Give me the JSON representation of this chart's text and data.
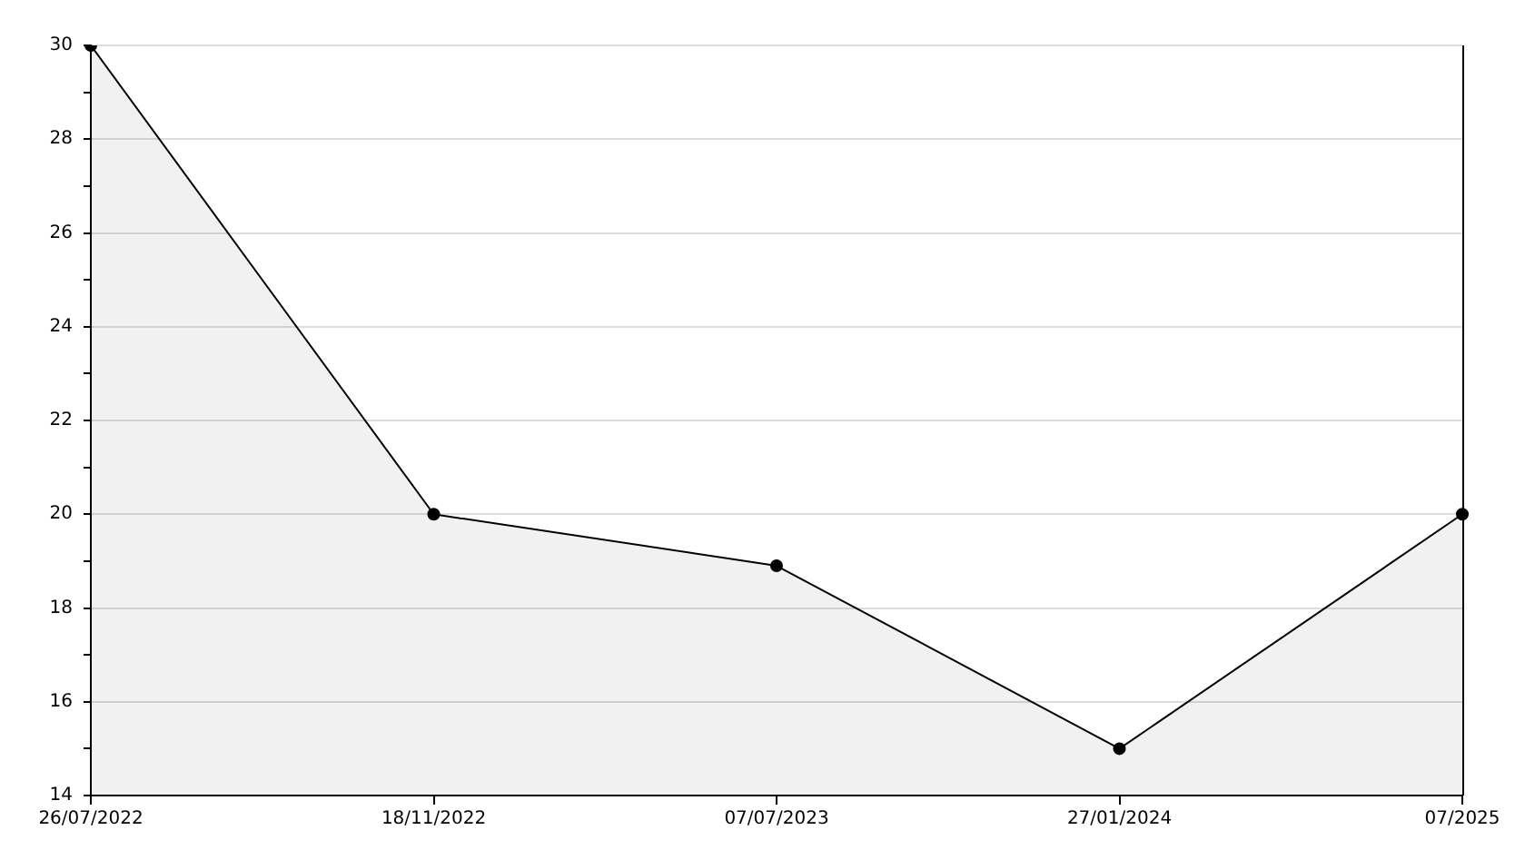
{
  "chart_data": {
    "type": "area",
    "categories": [
      "26/07/2022",
      "18/11/2022",
      "07/07/2023",
      "27/01/2024",
      "07/2025"
    ],
    "series": [
      {
        "color": "#000000",
        "values": [
          30,
          20,
          18.9,
          15,
          20
        ]
      }
    ],
    "ylim": [
      14,
      30
    ],
    "yticks": [
      14,
      {
        "value": 15,
        "label": null
      },
      16,
      {
        "value": 17,
        "label": null
      },
      18,
      {
        "value": 19,
        "label": null
      },
      20,
      {
        "value": 21,
        "label": null
      },
      22,
      {
        "value": 23,
        "label": null
      },
      24,
      {
        "value": 25,
        "label": null
      },
      26,
      {
        "value": 27,
        "label": null
      },
      28,
      {
        "value": 29,
        "label": null
      },
      30
    ],
    "grid": "y",
    "marker": "circle",
    "legend": false
  }
}
